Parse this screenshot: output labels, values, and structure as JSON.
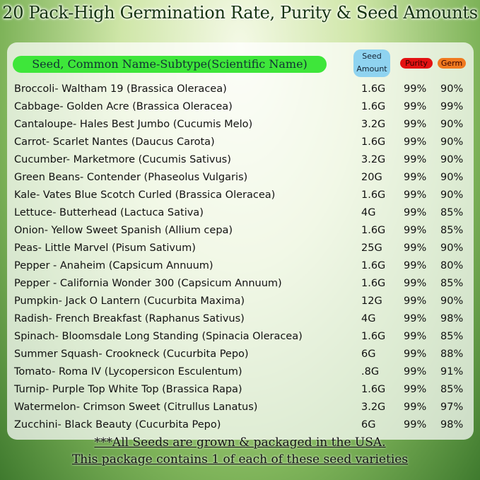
{
  "header": {
    "title": "20 Pack-High Germination Rate, Purity & Seed Amounts"
  },
  "table": {
    "columns": [
      "Seed, Common Name-Subtype(Scientific Name)",
      "Seed Amount",
      "Purity",
      "Germ"
    ],
    "rows": [
      [
        "Broccoli- Waltham 19 (Brassica Oleracea)",
        "1.6G",
        "99%",
        "90%"
      ],
      [
        "Cabbage- Golden Acre (Brassica Oleracea)",
        "1.6G",
        "99%",
        "99%"
      ],
      [
        "Cantaloupe- Hales Best Jumbo (Cucumis Melo)",
        "3.2G",
        "99%",
        "90%"
      ],
      [
        "Carrot- Scarlet Nantes (Daucus Carota)",
        "1.6G",
        "99%",
        "90%"
      ],
      [
        "Cucumber- Marketmore (Cucumis Sativus)",
        "3.2G",
        "99%",
        "90%"
      ],
      [
        "Green Beans- Contender (Phaseolus Vulgaris)",
        "20G",
        "99%",
        "90%"
      ],
      [
        "Kale- Vates Blue Scotch Curled (Brassica Oleracea)",
        "1.6G",
        "99%",
        "90%"
      ],
      [
        "Lettuce- Butterhead (Lactuca Sativa)",
        "4G",
        "99%",
        "85%"
      ],
      [
        "Onion- Yellow Sweet Spanish (Allium cepa)",
        "1.6G",
        "99%",
        "85%"
      ],
      [
        "Peas- Little Marvel (Pisum Sativum)",
        "25G",
        "99%",
        "90%"
      ],
      [
        "Pepper - Anaheim (Capsicum Annuum)",
        "1.6G",
        "99%",
        "80%"
      ],
      [
        "Pepper - California Wonder 300 (Capsicum Annuum)",
        "1.6G",
        "99%",
        "85%"
      ],
      [
        "Pumpkin- Jack O Lantern (Cucurbita Maxima)",
        "12G",
        "99%",
        "90%"
      ],
      [
        "Radish- French Breakfast (Raphanus Sativus)",
        "4G",
        "99%",
        "98%"
      ],
      [
        "Spinach- Bloomsdale Long Standing (Spinacia Oleracea)",
        "1.6G",
        "99%",
        "85%"
      ],
      [
        "Summer Squash- Crookneck (Cucurbita Pepo)",
        "6G",
        "99%",
        "88%"
      ],
      [
        "Tomato- Roma IV (Lycopersicon Esculentum)",
        ".8G",
        "99%",
        "91%"
      ],
      [
        "Turnip- Purple Top White Top (Brassica Rapa)",
        "1.6G",
        "99%",
        "85%"
      ],
      [
        "Watermelon- Crimson Sweet (Citrullus Lanatus)",
        "3.2G",
        "99%",
        "97%"
      ],
      [
        "Zucchini- Black Beauty (Cucurbita Pepo)",
        "6G",
        "99%",
        "98%"
      ]
    ]
  },
  "footer": {
    "lines": [
      "***All Seeds are grown & packaged in the USA.",
      "This package contains 1 of each of these seed varieties"
    ]
  }
}
